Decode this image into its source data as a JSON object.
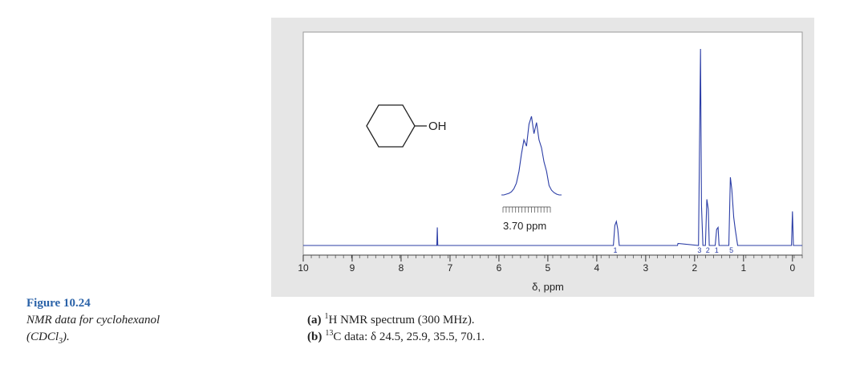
{
  "chart_data": {
    "type": "line",
    "xlabel": "δ, ppm",
    "xlim": [
      10,
      -0.2
    ],
    "xticks": [
      10,
      9,
      8,
      7,
      6,
      5,
      4,
      3,
      2,
      1,
      0
    ],
    "ylim": [
      0,
      100
    ],
    "series": [
      {
        "color": "#2b3da6",
        "x": [
          10,
          7.27,
          7.26,
          7.25,
          3.66,
          3.63,
          3.6,
          3.57,
          3.54,
          2.35,
          2.34,
          1.92,
          1.88,
          1.86,
          1.83,
          1.78,
          1.75,
          1.72,
          1.7,
          1.58,
          1.55,
          1.52,
          1.5,
          1.3,
          1.27,
          1.24,
          1.2,
          1.17,
          1.12,
          0.02,
          0,
          -0.02,
          -0.2
        ],
        "values": [
          0,
          0,
          9,
          0,
          0,
          10,
          12,
          8,
          0,
          0,
          1,
          0,
          98,
          20,
          0,
          0,
          23,
          18,
          0,
          0,
          8,
          9,
          0,
          0,
          34,
          28,
          14,
          8,
          0,
          0,
          17,
          0,
          0
        ]
      }
    ],
    "integrals": {
      "x": [
        3.62,
        1.9,
        1.73,
        1.55,
        1.25
      ],
      "values": [
        1,
        3,
        2,
        1,
        5
      ]
    },
    "inset": {
      "annotation": "3.70 ppm",
      "xlim": [
        3.76,
        3.64
      ],
      "ylim": [
        0,
        100
      ],
      "x": [
        3.76,
        3.755,
        3.75,
        3.745,
        3.74,
        3.735,
        3.73,
        3.725,
        3.72,
        3.715,
        3.71,
        3.705,
        3.7,
        3.695,
        3.69,
        3.685,
        3.68,
        3.675,
        3.67,
        3.665,
        3.66,
        3.655,
        3.65,
        3.645,
        3.64
      ],
      "values": [
        0,
        0,
        1,
        2,
        4,
        8,
        15,
        30,
        52,
        70,
        62,
        90,
        100,
        78,
        92,
        70,
        60,
        42,
        30,
        12,
        6,
        3,
        1,
        0,
        0
      ]
    },
    "structure_label": "OH"
  },
  "figure": {
    "label": "Figure 10.24",
    "caption": [
      "NMR data for cyclohexanol",
      "(CDCl",
      "3",
      ")."
    ],
    "notes": [
      [
        "(a)",
        "1",
        "H NMR spectrum (300 MHz)."
      ],
      [
        "(b)",
        "13",
        "C data: δ 24.5, 25.9, 35.5, 70.1."
      ]
    ]
  }
}
